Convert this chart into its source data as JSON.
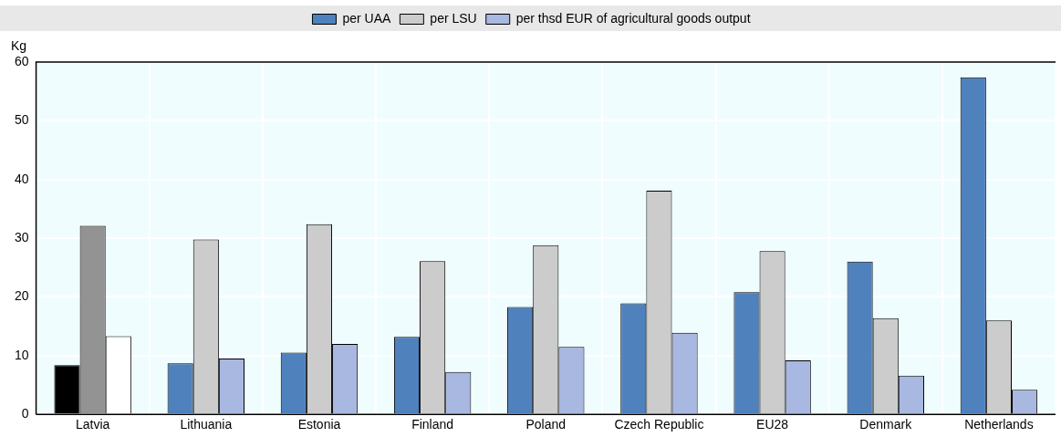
{
  "chart_data": {
    "type": "bar",
    "ylabel": "Kg",
    "categories": [
      "Latvia",
      "Lithuania",
      "Estonia",
      "Finland",
      "Poland",
      "Czech Republic",
      "EU28",
      "Denmark",
      "Netherlands"
    ],
    "series": [
      {
        "name": "per UAA",
        "color": "#4f81bd",
        "colors": [
          "#000000",
          "#4f81bd",
          "#4f81bd",
          "#4f81bd",
          "#4f81bd",
          "#4f81bd",
          "#4f81bd",
          "#4f81bd",
          "#4f81bd"
        ],
        "values": [
          8.4,
          8.7,
          10.5,
          13.2,
          18.3,
          18.9,
          20.8,
          26.0,
          57.4
        ]
      },
      {
        "name": "per LSU",
        "color": "#cccccc",
        "colors": [
          "#939393",
          "#cccccc",
          "#cccccc",
          "#cccccc",
          "#cccccc",
          "#cccccc",
          "#cccccc",
          "#cccccc",
          "#cccccc"
        ],
        "values": [
          32.1,
          29.8,
          32.4,
          26.1,
          28.8,
          38.1,
          27.8,
          16.4,
          16.0
        ]
      },
      {
        "name": "per thsd EUR of agricultural goods output",
        "color": "#a9b8e1",
        "colors": [
          "#ffffff",
          "#a9b8e1",
          "#a9b8e1",
          "#a9b8e1",
          "#a9b8e1",
          "#a9b8e1",
          "#a9b8e1",
          "#a9b8e1",
          "#a9b8e1"
        ],
        "values": [
          13.3,
          9.5,
          12.0,
          7.2,
          11.5,
          13.9,
          9.2,
          6.6,
          4.2
        ]
      }
    ],
    "ylim": [
      0,
      60
    ],
    "yticks": [
      0,
      10,
      20,
      30,
      40,
      50,
      60
    ],
    "grid": true,
    "legend": "top"
  }
}
